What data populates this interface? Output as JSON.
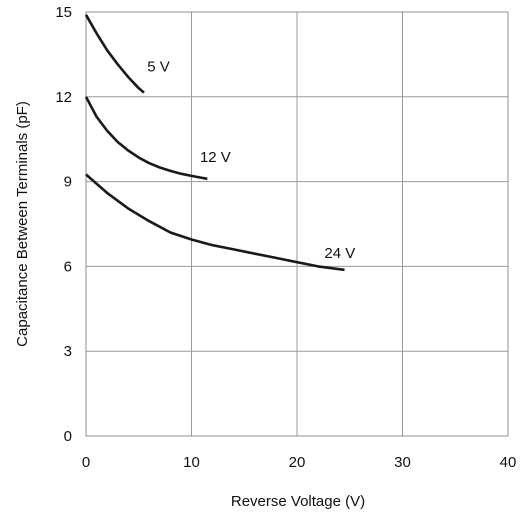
{
  "chart_data": {
    "type": "line",
    "xlabel": "Reverse Voltage (V)",
    "ylabel": "Capacitance Between Terminals (pF)",
    "xlim": [
      0,
      40
    ],
    "ylim": [
      0,
      15
    ],
    "xticks": [
      "0",
      "10",
      "20",
      "30",
      "40"
    ],
    "yticks": [
      "0",
      "3",
      "6",
      "9",
      "12",
      "15"
    ],
    "grid": true,
    "series": [
      {
        "name": "5 V",
        "x": [
          0,
          1,
          2,
          3,
          4,
          5,
          5.5
        ],
        "y": [
          14.9,
          14.25,
          13.65,
          13.15,
          12.7,
          12.3,
          12.15
        ]
      },
      {
        "name": "12 V",
        "x": [
          0,
          1,
          2,
          3,
          4,
          5,
          6,
          7,
          8,
          9,
          10,
          11,
          11.5
        ],
        "y": [
          12.0,
          11.3,
          10.8,
          10.4,
          10.1,
          9.85,
          9.65,
          9.5,
          9.38,
          9.28,
          9.2,
          9.13,
          9.1
        ]
      },
      {
        "name": "24 V",
        "x": [
          0,
          2,
          4,
          6,
          8,
          10,
          12,
          14,
          16,
          18,
          20,
          22,
          24,
          24.5
        ],
        "y": [
          9.25,
          8.6,
          8.05,
          7.6,
          7.2,
          6.95,
          6.75,
          6.6,
          6.45,
          6.3,
          6.15,
          6.0,
          5.9,
          5.88
        ]
      }
    ]
  }
}
